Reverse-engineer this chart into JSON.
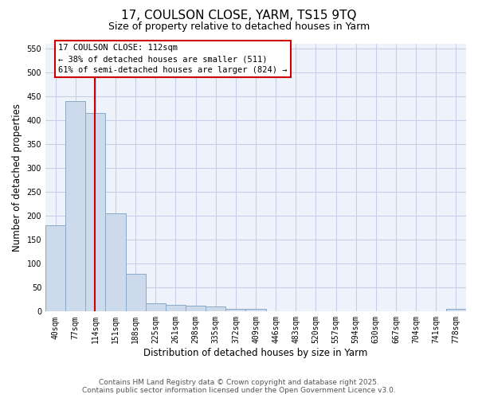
{
  "title": "17, COULSON CLOSE, YARM, TS15 9TQ",
  "subtitle": "Size of property relative to detached houses in Yarm",
  "xlabel": "Distribution of detached houses by size in Yarm",
  "ylabel": "Number of detached properties",
  "bar_color": "#ccdaeb",
  "bar_edge_color": "#8aaac8",
  "grid_color": "#c5cfe8",
  "background_color": "#eef2fa",
  "categories": [
    "40sqm",
    "77sqm",
    "114sqm",
    "151sqm",
    "188sqm",
    "225sqm",
    "261sqm",
    "298sqm",
    "335sqm",
    "372sqm",
    "409sqm",
    "446sqm",
    "483sqm",
    "520sqm",
    "557sqm",
    "594sqm",
    "630sqm",
    "667sqm",
    "704sqm",
    "741sqm",
    "778sqm"
  ],
  "values": [
    180,
    440,
    415,
    205,
    78,
    18,
    14,
    12,
    10,
    5,
    5,
    0,
    0,
    0,
    0,
    0,
    0,
    0,
    0,
    0,
    5
  ],
  "ylim": [
    0,
    560
  ],
  "yticks": [
    0,
    50,
    100,
    150,
    200,
    250,
    300,
    350,
    400,
    450,
    500,
    550
  ],
  "vline_x": 1.97,
  "vline_color": "#cc0000",
  "annotation_line1": "17 COULSON CLOSE: 112sqm",
  "annotation_line2": "← 38% of detached houses are smaller (511)",
  "annotation_line3": "61% of semi-detached houses are larger (824) →",
  "footer_line1": "Contains HM Land Registry data © Crown copyright and database right 2025.",
  "footer_line2": "Contains public sector information licensed under the Open Government Licence v3.0.",
  "title_fontsize": 11,
  "subtitle_fontsize": 9,
  "label_fontsize": 8.5,
  "tick_fontsize": 7,
  "annot_fontsize": 7.5,
  "footer_fontsize": 6.5
}
